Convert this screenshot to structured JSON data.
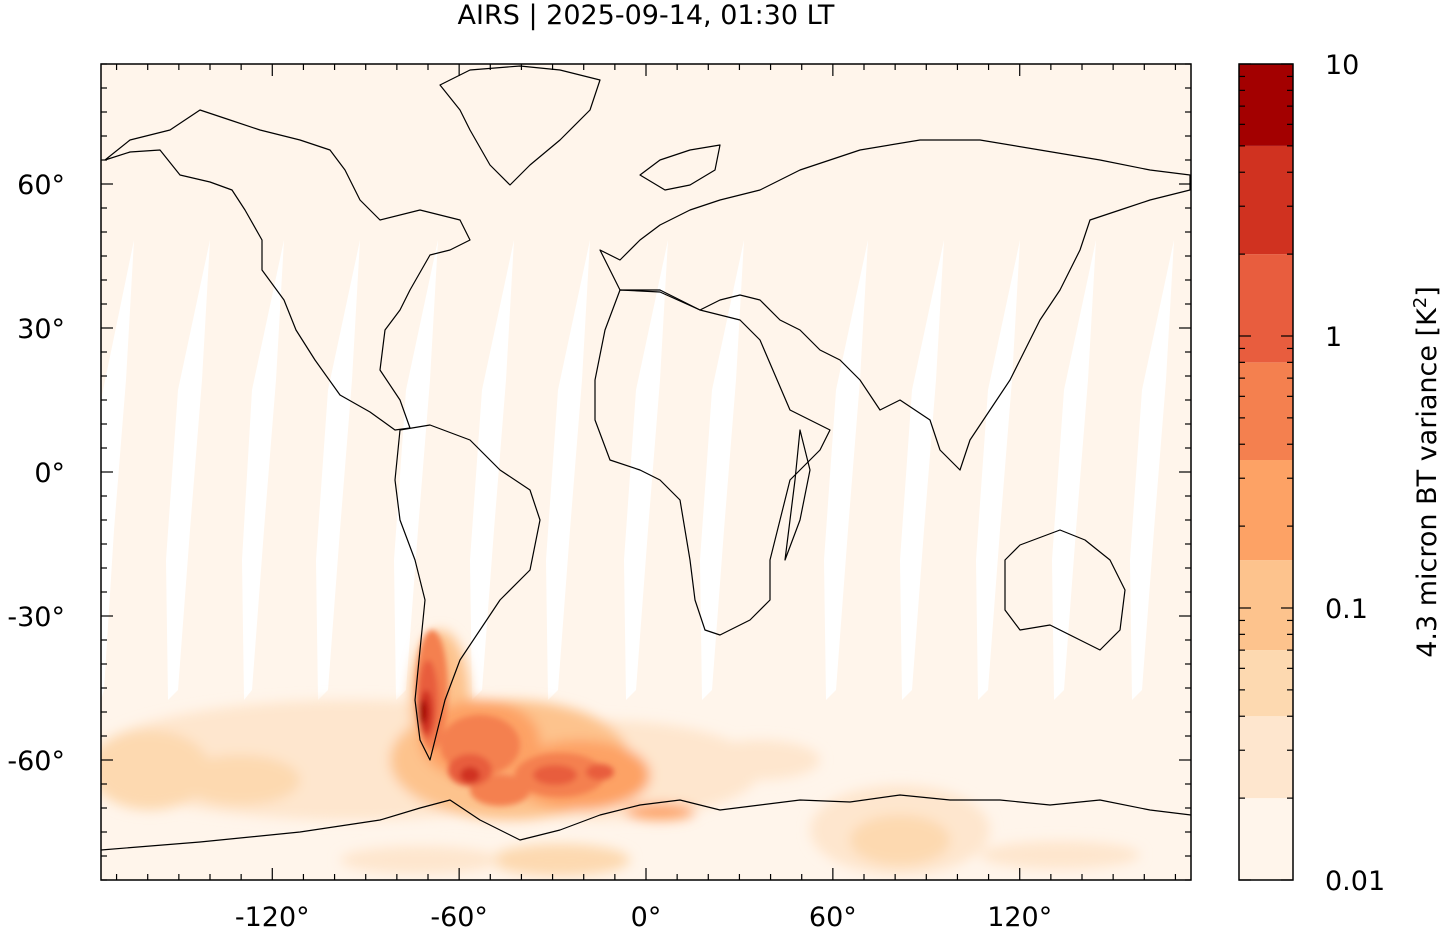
{
  "title": "AIRS | 2025-09-14, 01:30 LT",
  "map": {
    "x_ticks": [
      {
        "value": -120,
        "label": "-120°"
      },
      {
        "value": -60,
        "label": "-60°"
      },
      {
        "value": 0,
        "label": "0°"
      },
      {
        "value": 60,
        "label": "60°"
      },
      {
        "value": 120,
        "label": "120°"
      }
    ],
    "y_ticks": [
      {
        "value": 60,
        "label": "60°"
      },
      {
        "value": 30,
        "label": "30°"
      },
      {
        "value": 0,
        "label": "0°"
      },
      {
        "value": -30,
        "label": "-30°"
      },
      {
        "value": -60,
        "label": "-60°"
      }
    ],
    "lon_range": [
      -175,
      175
    ],
    "lat_range": [
      -85,
      85
    ],
    "background_color": "#fff5eb",
    "gap_color": "#ffffff",
    "coastline_color": "#000000"
  },
  "colorbar": {
    "label_main": "4.3 micron BT variance [K",
    "label_sup": "2",
    "label_end": "]",
    "scale": "log",
    "range": [
      0.01,
      10
    ],
    "tick_labels": [
      {
        "value": 10,
        "label": "10"
      },
      {
        "value": 1,
        "label": "1"
      },
      {
        "value": 0.1,
        "label": "0.1"
      },
      {
        "value": 0.01,
        "label": "0.01"
      }
    ],
    "levels": [
      {
        "from": 0.01,
        "to": 0.02,
        "color": "#fff5eb"
      },
      {
        "from": 0.02,
        "to": 0.04,
        "color": "#fee6ce"
      },
      {
        "from": 0.04,
        "to": 0.07,
        "color": "#fdd9b0"
      },
      {
        "from": 0.07,
        "to": 0.15,
        "color": "#fdc38d"
      },
      {
        "from": 0.15,
        "to": 0.35,
        "color": "#fda265"
      },
      {
        "from": 0.35,
        "to": 0.8,
        "color": "#f4804f"
      },
      {
        "from": 0.8,
        "to": 2.0,
        "color": "#e85d3e"
      },
      {
        "from": 2.0,
        "to": 5.0,
        "color": "#d03220"
      },
      {
        "from": 5.0,
        "to": 10,
        "color": "#a30000"
      }
    ]
  }
}
